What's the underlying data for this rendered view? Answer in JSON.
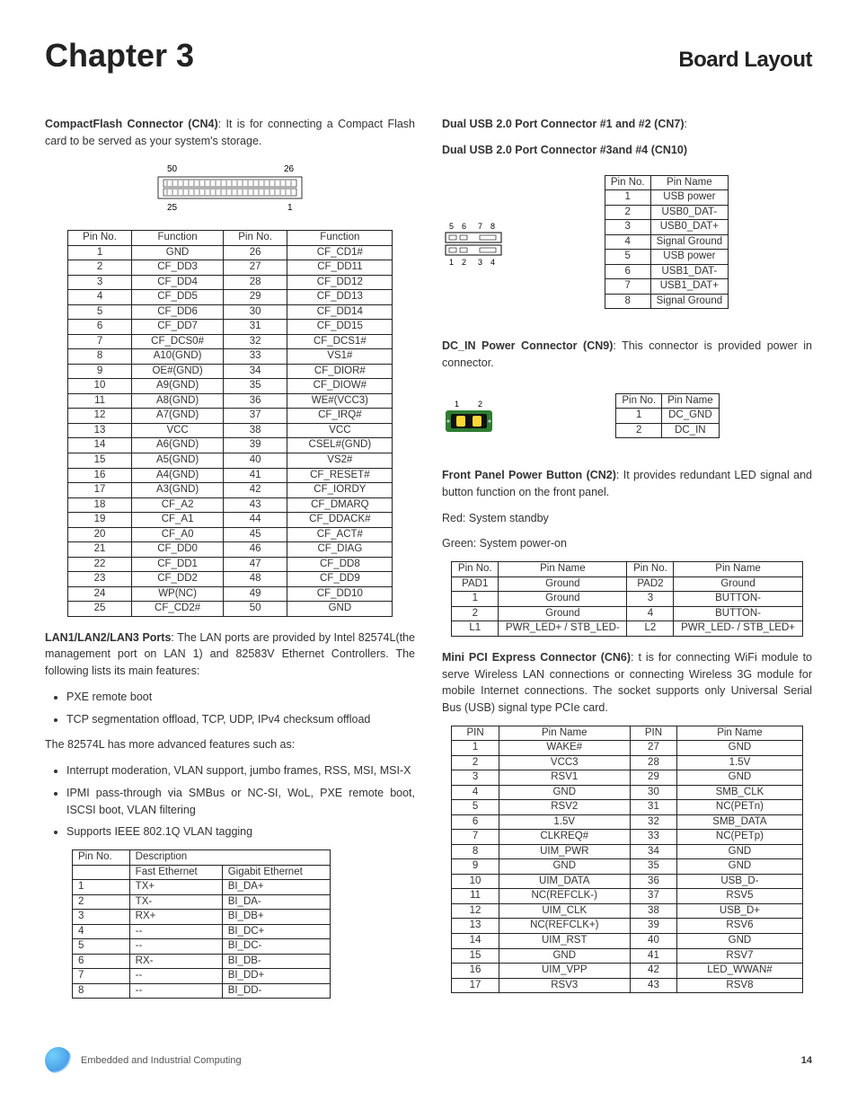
{
  "header": {
    "chapter": "Chapter 3",
    "title": "Board Layout"
  },
  "cn4": {
    "title": "CompactFlash Connector (CN4)",
    "desc": ": It is for connecting a Compact Flash card to be served as your system's storage.",
    "rows": [
      [
        "1",
        "GND",
        "26",
        "CF_CD1#"
      ],
      [
        "2",
        "CF_DD3",
        "27",
        "CF_DD11"
      ],
      [
        "3",
        "CF_DD4",
        "28",
        "CF_DD12"
      ],
      [
        "4",
        "CF_DD5",
        "29",
        "CF_DD13"
      ],
      [
        "5",
        "CF_DD6",
        "30",
        "CF_DD14"
      ],
      [
        "6",
        "CF_DD7",
        "31",
        "CF_DD15"
      ],
      [
        "7",
        "CF_DCS0#",
        "32",
        "CF_DCS1#"
      ],
      [
        "8",
        "A10(GND)",
        "33",
        "VS1#"
      ],
      [
        "9",
        "OE#(GND)",
        "34",
        "CF_DIOR#"
      ],
      [
        "10",
        "A9(GND)",
        "35",
        "CF_DIOW#"
      ],
      [
        "11",
        "A8(GND)",
        "36",
        "WE#(VCC3)"
      ],
      [
        "12",
        "A7(GND)",
        "37",
        "CF_IRQ#"
      ],
      [
        "13",
        "VCC",
        "38",
        "VCC"
      ],
      [
        "14",
        "A6(GND)",
        "39",
        "CSEL#(GND)"
      ],
      [
        "15",
        "A5(GND)",
        "40",
        "VS2#"
      ],
      [
        "16",
        "A4(GND)",
        "41",
        "CF_RESET#"
      ],
      [
        "17",
        "A3(GND)",
        "42",
        "CF_IORDY"
      ],
      [
        "18",
        "CF_A2",
        "43",
        "CF_DMARQ"
      ],
      [
        "19",
        "CF_A1",
        "44",
        "CF_DDACK#"
      ],
      [
        "20",
        "CF_A0",
        "45",
        "CF_ACT#"
      ],
      [
        "21",
        "CF_DD0",
        "46",
        "CF_DIAG"
      ],
      [
        "22",
        "CF_DD1",
        "47",
        "CF_DD8"
      ],
      [
        "23",
        "CF_DD2",
        "48",
        "CF_DD9"
      ],
      [
        "24",
        "WP(NC)",
        "49",
        "CF_DD10"
      ],
      [
        "25",
        "CF_CD2#",
        "50",
        "GND"
      ]
    ],
    "head": [
      "Pin No.",
      "Function",
      "Pin No.",
      "Function"
    ]
  },
  "lan": {
    "title": "LAN1/LAN2/LAN3 Ports",
    "desc": ": The LAN ports are provided by Intel 82574L(the management port on LAN 1) and 82583V Ethernet Controllers. The following lists its main features:",
    "bullets1": [
      "PXE remote boot",
      "TCP segmentation offload, TCP, UDP, IPv4 checksum offload"
    ],
    "mid": "The 82574L has more advanced features such as:",
    "bullets2": [
      "Interrupt moderation, VLAN support, jumbo frames, RSS, MSI, MSI-X",
      "IPMI pass-through via SMBus or NC-SI, WoL, PXE remote boot, ISCSI boot, VLAN filtering",
      "Supports IEEE 802.1Q VLAN tagging"
    ],
    "head": [
      "Pin No.",
      "Description"
    ],
    "subhead": [
      "",
      "Fast Ethernet",
      "Gigabit Ethernet"
    ],
    "rows": [
      [
        "1",
        "TX+",
        "BI_DA+"
      ],
      [
        "2",
        "TX-",
        "BI_DA-"
      ],
      [
        "3",
        "RX+",
        "BI_DB+"
      ],
      [
        "4",
        "--",
        "BI_DC+"
      ],
      [
        "5",
        "--",
        "BI_DC-"
      ],
      [
        "6",
        "RX-",
        "BI_DB-"
      ],
      [
        "7",
        "--",
        "BI_DD+"
      ],
      [
        "8",
        "--",
        "BI_DD-"
      ]
    ]
  },
  "cn7": {
    "t1": "Dual USB 2.0 Port Connector #1 and #2 (CN7)",
    "t2": "Dual USB 2.0 Port Connector #3and #4 (CN10)",
    "colon": ":",
    "head": [
      "Pin No.",
      "Pin Name"
    ],
    "rows": [
      [
        "1",
        "USB power"
      ],
      [
        "2",
        "USB0_DAT-"
      ],
      [
        "3",
        "USB0_DAT+"
      ],
      [
        "4",
        "Signal Ground"
      ],
      [
        "5",
        "USB power"
      ],
      [
        "6",
        "USB1_DAT-"
      ],
      [
        "7",
        "USB1_DAT+"
      ],
      [
        "8",
        "Signal Ground"
      ]
    ]
  },
  "cn9": {
    "title": "DC_IN Power Connector (CN9)",
    "desc": ": This connector is provided power in connector.",
    "head": [
      "Pin No.",
      "Pin Name"
    ],
    "rows": [
      [
        "1",
        "DC_GND"
      ],
      [
        "2",
        "DC_IN"
      ]
    ]
  },
  "cn2": {
    "title": "Front Panel Power Button (CN2)",
    "desc": ": It provides redundant LED signal and button function on the front panel.",
    "red": "Red: System standby",
    "green": "Green: System power-on",
    "head": [
      "Pin No.",
      "Pin Name",
      "Pin No.",
      "Pin Name"
    ],
    "rows": [
      [
        "PAD1",
        "Ground",
        "PAD2",
        "Ground"
      ],
      [
        "1",
        "Ground",
        "3",
        "BUTTON-"
      ],
      [
        "2",
        "Ground",
        "4",
        "BUTTON-"
      ],
      [
        "L1",
        "PWR_LED+ / STB_LED-",
        "L2",
        "PWR_LED- / STB_LED+"
      ]
    ]
  },
  "cn6": {
    "title": "Mini PCI Express Connector (CN6)",
    "desc": ": t is for connecting WiFi module to serve Wireless LAN connections or connecting Wireless 3G module for mobile Internet connections. The socket supports only Universal Serial Bus (USB) signal type PCIe card.",
    "head": [
      "PIN",
      "Pin Name",
      "PIN",
      "Pin Name"
    ],
    "rows": [
      [
        "1",
        "WAKE#",
        "27",
        "GND"
      ],
      [
        "2",
        "VCC3",
        "28",
        "1.5V"
      ],
      [
        "3",
        "RSV1",
        "29",
        "GND"
      ],
      [
        "4",
        "GND",
        "30",
        "SMB_CLK"
      ],
      [
        "5",
        "RSV2",
        "31",
        "NC(PETn)"
      ],
      [
        "6",
        "1.5V",
        "32",
        "SMB_DATA"
      ],
      [
        "7",
        "CLKREQ#",
        "33",
        "NC(PETp)"
      ],
      [
        "8",
        "UIM_PWR",
        "34",
        "GND"
      ],
      [
        "9",
        "GND",
        "35",
        "GND"
      ],
      [
        "10",
        "UIM_DATA",
        "36",
        "USB_D-"
      ],
      [
        "11",
        "NC(REFCLK-)",
        "37",
        "RSV5"
      ],
      [
        "12",
        "UIM_CLK",
        "38",
        "USB_D+"
      ],
      [
        "13",
        "NC(REFCLK+)",
        "39",
        "RSV6"
      ],
      [
        "14",
        "UIM_RST",
        "40",
        "GND"
      ],
      [
        "15",
        "GND",
        "41",
        "RSV7"
      ],
      [
        "16",
        "UIM_VPP",
        "42",
        "LED_WWAN#"
      ],
      [
        "17",
        "RSV3",
        "43",
        "RSV8"
      ]
    ]
  },
  "footer": {
    "text": "Embedded and Industrial Computing",
    "page": "14"
  }
}
